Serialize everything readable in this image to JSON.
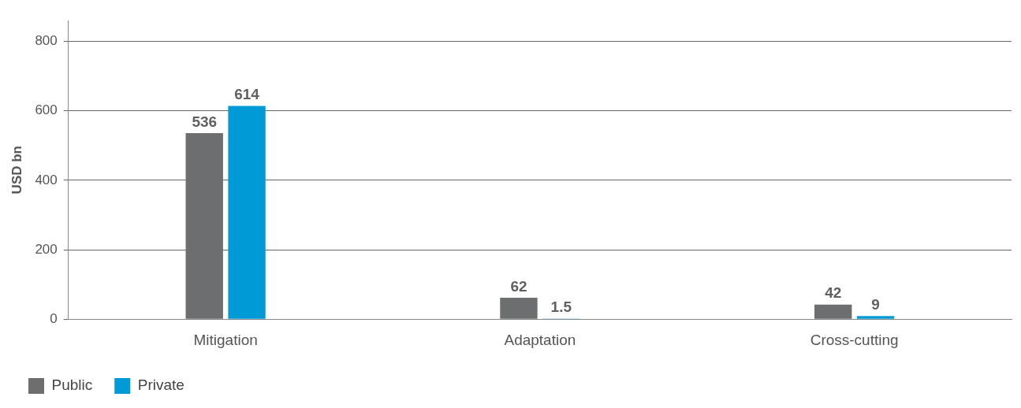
{
  "chart_data": {
    "type": "bar",
    "ylabel": "USD bn",
    "categories": [
      "Mitigation",
      "Adaptation",
      "Cross-cutting"
    ],
    "series": [
      {
        "name": "Public",
        "color": "#6d6e70",
        "values": [
          536,
          62,
          42
        ]
      },
      {
        "name": "Private",
        "color": "#009ad6",
        "values": [
          614,
          1.5,
          9
        ]
      }
    ],
    "ylim": [
      0,
      860
    ],
    "yticks": [
      0,
      200,
      400,
      600,
      800
    ],
    "grid": "y",
    "legend": "bottom left",
    "data_labels": true
  }
}
